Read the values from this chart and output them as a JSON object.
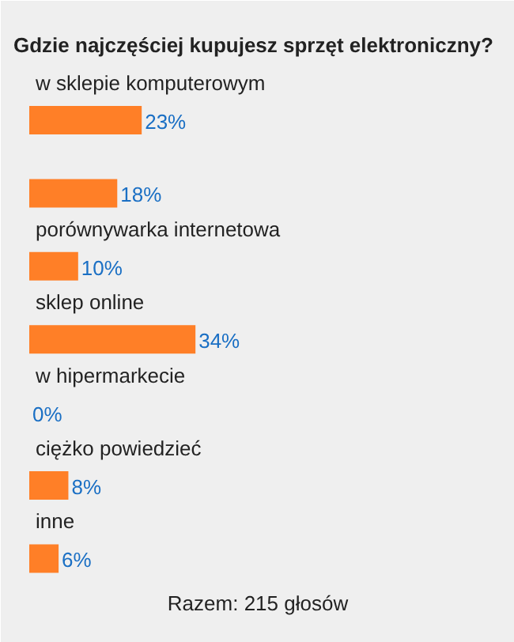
{
  "chart_data": {
    "type": "bar",
    "orientation": "horizontal",
    "title": "Gdzie najczęściej kupujesz sprzęt elektroniczny?",
    "categories": [
      "w sklepie komputerowym",
      null,
      "porównywarka internetowa",
      "sklep online",
      "w hipermarkecie",
      "ciężko powiedzieć",
      "inne"
    ],
    "values": [
      23,
      18,
      10,
      34,
      0,
      8,
      6
    ],
    "value_labels": [
      "23%",
      "18%",
      "10%",
      "34%",
      "0%",
      "8%",
      "6%"
    ],
    "color": "#ff7f27",
    "annotations": [
      "Razem: 215 głosów"
    ]
  }
}
